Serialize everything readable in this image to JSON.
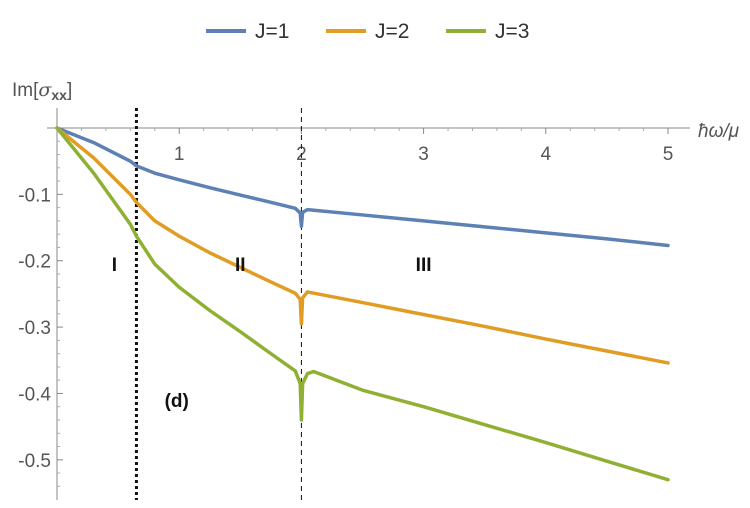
{
  "chart_data": {
    "type": "line",
    "title": "",
    "xlabel": "ħω/μ",
    "ylabel": {
      "main": "Im[",
      "sigma": "σ",
      "sub": "xx",
      "close": "]"
    },
    "xlim": [
      0,
      5
    ],
    "ylim": [
      -0.55,
      0
    ],
    "xticks": [
      1,
      2,
      3,
      4,
      5
    ],
    "xtick_labels": [
      "1",
      "2",
      "3",
      "4",
      "5"
    ],
    "yticks": [
      -0.1,
      -0.2,
      -0.3,
      -0.4,
      -0.5
    ],
    "ytick_labels": [
      "-0.1",
      "-0.2",
      "-0.3",
      "-0.4",
      "-0.5"
    ],
    "grid": false,
    "legend_position": "top-center",
    "series": [
      {
        "name": "J=1",
        "color": "#5e81b5",
        "x": [
          0,
          0.3,
          0.6,
          0.65,
          0.8,
          1.0,
          1.25,
          1.5,
          1.75,
          1.95,
          1.99,
          2.0,
          2.01,
          2.05,
          2.5,
          3.0,
          3.5,
          4.0,
          4.5,
          5.0
        ],
        "y": [
          0,
          -0.022,
          -0.05,
          -0.057,
          -0.068,
          -0.078,
          -0.09,
          -0.101,
          -0.112,
          -0.121,
          -0.128,
          -0.148,
          -0.127,
          -0.123,
          -0.131,
          -0.14,
          -0.149,
          -0.158,
          -0.167,
          -0.177
        ]
      },
      {
        "name": "J=2",
        "color": "#e19c24",
        "x": [
          0,
          0.3,
          0.6,
          0.65,
          0.8,
          1.0,
          1.25,
          1.5,
          1.75,
          1.95,
          1.99,
          2.0,
          2.01,
          2.05,
          2.5,
          3.0,
          3.5,
          4.0,
          4.5,
          5.0
        ],
        "y": [
          0,
          -0.045,
          -0.1,
          -0.112,
          -0.14,
          -0.163,
          -0.188,
          -0.21,
          -0.232,
          -0.249,
          -0.258,
          -0.295,
          -0.256,
          -0.247,
          -0.263,
          -0.281,
          -0.299,
          -0.318,
          -0.336,
          -0.354
        ]
      },
      {
        "name": "J=3",
        "color": "#8fb032",
        "x": [
          0,
          0.3,
          0.6,
          0.65,
          0.8,
          1.0,
          1.25,
          1.5,
          1.75,
          1.95,
          1.99,
          2.0,
          2.01,
          2.05,
          2.1,
          2.5,
          3.0,
          3.5,
          4.0,
          4.5,
          5.0
        ],
        "y": [
          0,
          -0.068,
          -0.145,
          -0.163,
          -0.205,
          -0.24,
          -0.275,
          -0.307,
          -0.34,
          -0.366,
          -0.385,
          -0.44,
          -0.385,
          -0.37,
          -0.367,
          -0.395,
          -0.42,
          -0.447,
          -0.474,
          -0.502,
          -0.53
        ]
      }
    ],
    "vlines": [
      {
        "x": 0.65,
        "style": "thick-dotted"
      },
      {
        "x": 2.0,
        "style": "thin-dashed"
      }
    ],
    "annotations": [
      {
        "text": "I",
        "x": 0.47,
        "y": -0.205
      },
      {
        "text": "II",
        "x": 1.5,
        "y": -0.205
      },
      {
        "text": "III",
        "x": 3.0,
        "y": -0.205
      },
      {
        "text": "(d)",
        "x": 0.98,
        "y": -0.41
      }
    ]
  }
}
